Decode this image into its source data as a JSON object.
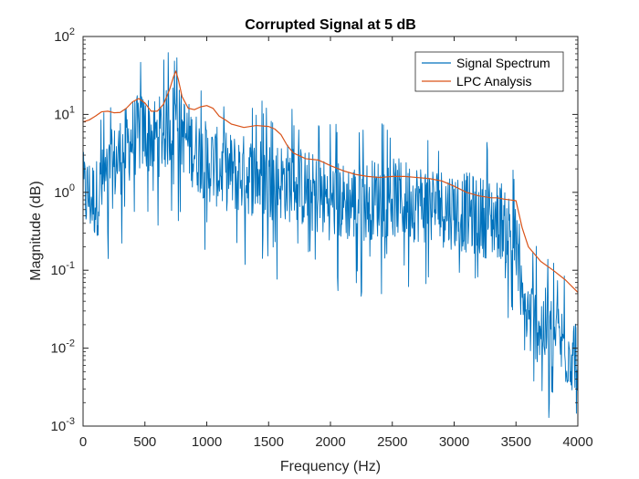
{
  "chart_data": {
    "type": "line",
    "title": "Corrupted Signal at 5 dB",
    "xlabel": "Frequency (Hz)",
    "ylabel": "Magnitude (dB)",
    "xlim": [
      0,
      4000
    ],
    "ylim": [
      0.001,
      100
    ],
    "yscale": "log",
    "grid": false,
    "legend_position": "top-right",
    "x_ticks": [
      "0",
      "500",
      "1000",
      "1500",
      "2000",
      "2500",
      "3000",
      "3500",
      "4000"
    ],
    "x_tick_values": [
      0,
      500,
      1000,
      1500,
      2000,
      2500,
      3000,
      3500,
      4000
    ],
    "y_ticks": [
      {
        "value": 0.001,
        "base": "10",
        "exp": "-3"
      },
      {
        "value": 0.01,
        "base": "10",
        "exp": "-2"
      },
      {
        "value": 0.1,
        "base": "10",
        "exp": "-1"
      },
      {
        "value": 1,
        "base": "10",
        "exp": "0"
      },
      {
        "value": 10,
        "base": "10",
        "exp": "1"
      },
      {
        "value": 100,
        "base": "10",
        "exp": "2"
      }
    ],
    "series": [
      {
        "name": "Signal Spectrum",
        "color": "#0072BD",
        "x_range": [
          0,
          4000
        ],
        "points": 1024,
        "envelope": {
          "x": [
            0,
            100,
            200,
            300,
            400,
            500,
            600,
            700,
            750,
            800,
            900,
            1000,
            1100,
            1200,
            1300,
            1400,
            1500,
            1600,
            1700,
            1800,
            1900,
            2000,
            2100,
            2200,
            2300,
            2400,
            2500,
            2600,
            2700,
            2800,
            2900,
            3000,
            3100,
            3200,
            3300,
            3400,
            3500,
            3550,
            3600,
            3700,
            3800,
            3900,
            4000
          ],
          "y": [
            1.0,
            0.8,
            1.6,
            3.0,
            5.0,
            6.0,
            5.0,
            7.0,
            9.0,
            6.0,
            3.5,
            2.5,
            2.0,
            1.8,
            1.7,
            1.6,
            1.5,
            1.4,
            1.3,
            1.1,
            0.9,
            0.8,
            0.75,
            0.75,
            0.8,
            0.85,
            0.85,
            0.8,
            0.75,
            0.7,
            0.65,
            0.6,
            0.55,
            0.5,
            0.45,
            0.45,
            0.2,
            0.03,
            0.025,
            0.02,
            0.015,
            0.01,
            0.008
          ]
        }
      },
      {
        "name": "LPC Analysis",
        "color": "#D95319",
        "x": [
          0,
          50,
          100,
          150,
          200,
          250,
          300,
          350,
          400,
          450,
          500,
          550,
          600,
          650,
          700,
          730,
          750,
          770,
          800,
          850,
          900,
          950,
          1000,
          1050,
          1100,
          1150,
          1200,
          1300,
          1400,
          1500,
          1550,
          1600,
          1650,
          1700,
          1800,
          1900,
          1950,
          2000,
          2100,
          2200,
          2300,
          2400,
          2500,
          2600,
          2700,
          2800,
          2900,
          3000,
          3100,
          3200,
          3300,
          3350,
          3400,
          3450,
          3500,
          3550,
          3600,
          3700,
          3800,
          3900,
          4000
        ],
        "y": [
          8.0,
          8.5,
          9.5,
          10.8,
          11.0,
          10.5,
          10.6,
          12.0,
          14.5,
          16.0,
          14.0,
          11.0,
          11.0,
          13.5,
          21.0,
          30.0,
          36.0,
          28.0,
          17.0,
          12.0,
          11.5,
          12.5,
          13.0,
          12.0,
          9.5,
          8.5,
          7.5,
          6.8,
          7.2,
          7.0,
          6.5,
          5.5,
          4.0,
          3.2,
          2.7,
          2.6,
          2.4,
          2.2,
          1.9,
          1.7,
          1.6,
          1.55,
          1.6,
          1.6,
          1.55,
          1.5,
          1.4,
          1.2,
          1.0,
          0.9,
          0.85,
          0.85,
          0.82,
          0.8,
          0.78,
          0.35,
          0.2,
          0.13,
          0.1,
          0.075,
          0.052
        ]
      }
    ]
  }
}
